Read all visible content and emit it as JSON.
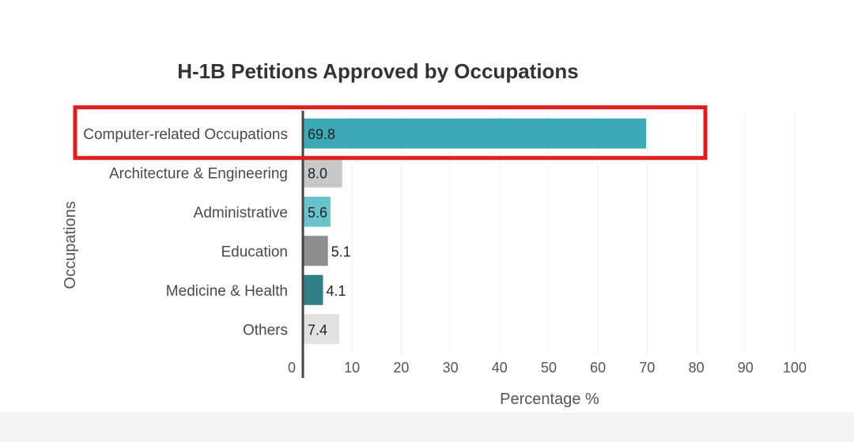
{
  "chart_data": {
    "type": "bar",
    "orientation": "horizontal",
    "title": "H-1B Petitions Approved by Occupations",
    "xlabel": "Percentage %",
    "ylabel": "Occupations",
    "categories": [
      "Computer-related Occupations",
      "Architecture & Engineering",
      "Administrative",
      "Education",
      "Medicine & Health",
      "Others"
    ],
    "values": [
      69.8,
      8.0,
      5.6,
      5.1,
      4.1,
      7.4
    ],
    "value_labels": [
      "69.8",
      "8.0",
      "5.6",
      "5.1",
      "4.1",
      "7.4"
    ],
    "bar_colors": [
      "#3ba9b6",
      "#c8c8c8",
      "#67c3cc",
      "#8e8e8e",
      "#2f7f87",
      "#e2e2e2"
    ],
    "xlim": [
      0,
      100
    ],
    "xticks": [
      "0",
      "10",
      "20",
      "30",
      "40",
      "50",
      "60",
      "70",
      "80",
      "90",
      "100"
    ],
    "grid": true,
    "legend": "none",
    "highlighted_category": "Computer-related Occupations",
    "highlight_color": "#e31b1b"
  }
}
